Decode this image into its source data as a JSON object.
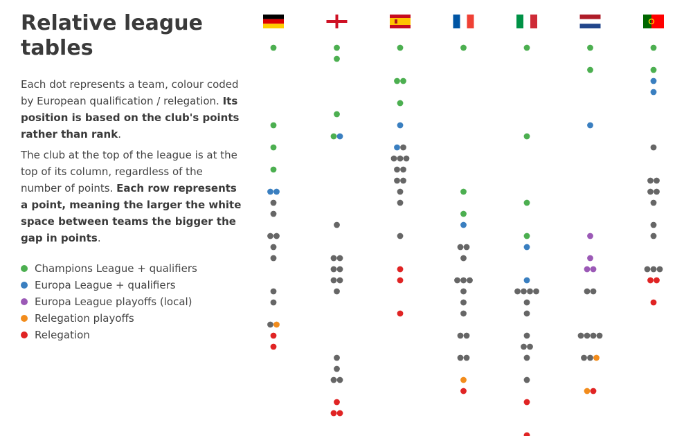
{
  "title_line1": "Relative league",
  "title_line2": "tables",
  "para1": {
    "a": "Each dot represents a team, colour coded by European qualification / relegation. ",
    "b": "Its position is based on the club's points rather than rank",
    "c": "."
  },
  "para2": {
    "a": "The club at the top of the league is at the top of its column, regardless of the number of points. ",
    "b": "Each row represents a point, meaning the larger the white space between teams the bigger the gap in points",
    "c": "."
  },
  "legend": [
    {
      "key": "cl",
      "label": "Champions League + qualifiers",
      "color": "#4caf50"
    },
    {
      "key": "el",
      "label": "Europa League + qualifiers",
      "color": "#3a7fc0"
    },
    {
      "key": "elp",
      "label": "Europa League playoffs (local)",
      "color": "#9b59b6"
    },
    {
      "key": "rp",
      "label": "Relegation playoffs",
      "color": "#f28c1c"
    },
    {
      "key": "rel",
      "label": "Relegation",
      "color": "#e02424"
    }
  ],
  "colors": {
    "none": "#666666"
  },
  "chart_data": {
    "type": "scatter",
    "leagues": [
      {
        "flag": "germany-flag",
        "rows": [
          [
            0,
            [
              "cl"
            ]
          ],
          [
            7,
            [
              "cl"
            ]
          ],
          [
            9,
            [
              "cl"
            ]
          ],
          [
            11,
            [
              "cl"
            ]
          ],
          [
            13,
            [
              "el",
              "el"
            ]
          ],
          [
            14,
            [
              "none"
            ]
          ],
          [
            15,
            [
              "none"
            ]
          ],
          [
            17,
            [
              "none",
              "none"
            ]
          ],
          [
            18,
            [
              "none"
            ]
          ],
          [
            19,
            [
              "none"
            ]
          ],
          [
            22,
            [
              "none"
            ]
          ],
          [
            23,
            [
              "none"
            ]
          ],
          [
            25,
            [
              "none",
              "rp"
            ]
          ],
          [
            26,
            [
              "rel"
            ]
          ],
          [
            27,
            [
              "rel"
            ]
          ]
        ]
      },
      {
        "flag": "england-flag",
        "rows": [
          [
            0,
            [
              "cl"
            ]
          ],
          [
            1,
            [
              "cl"
            ]
          ],
          [
            6,
            [
              "cl"
            ]
          ],
          [
            8,
            [
              "cl",
              "el"
            ]
          ],
          [
            16,
            [
              "none"
            ]
          ],
          [
            19,
            [
              "none",
              "none"
            ]
          ],
          [
            20,
            [
              "none",
              "none"
            ]
          ],
          [
            21,
            [
              "none",
              "none"
            ]
          ],
          [
            22,
            [
              "none"
            ]
          ],
          [
            28,
            [
              "none"
            ]
          ],
          [
            29,
            [
              "none"
            ]
          ],
          [
            30,
            [
              "none",
              "none"
            ]
          ],
          [
            32,
            [
              "rel"
            ]
          ],
          [
            33,
            [
              "rel",
              "rel"
            ]
          ]
        ]
      },
      {
        "flag": "spain-flag",
        "rows": [
          [
            0,
            [
              "cl"
            ]
          ],
          [
            3,
            [
              "cl",
              "cl"
            ]
          ],
          [
            5,
            [
              "cl"
            ]
          ],
          [
            7,
            [
              "el"
            ]
          ],
          [
            9,
            [
              "el",
              "none"
            ]
          ],
          [
            10,
            [
              "none",
              "none",
              "none"
            ]
          ],
          [
            11,
            [
              "none",
              "none"
            ]
          ],
          [
            12,
            [
              "none",
              "none"
            ]
          ],
          [
            13,
            [
              "none"
            ]
          ],
          [
            14,
            [
              "none"
            ]
          ],
          [
            17,
            [
              "none"
            ]
          ],
          [
            20,
            [
              "rel"
            ]
          ],
          [
            21,
            [
              "rel"
            ]
          ],
          [
            24,
            [
              "rel"
            ]
          ]
        ]
      },
      {
        "flag": "france-flag",
        "rows": [
          [
            0,
            [
              "cl"
            ]
          ],
          [
            13,
            [
              "cl"
            ]
          ],
          [
            15,
            [
              "cl"
            ]
          ],
          [
            16,
            [
              "el"
            ]
          ],
          [
            18,
            [
              "none",
              "none"
            ]
          ],
          [
            19,
            [
              "none"
            ]
          ],
          [
            21,
            [
              "none",
              "none",
              "none"
            ]
          ],
          [
            22,
            [
              "none"
            ]
          ],
          [
            23,
            [
              "none"
            ]
          ],
          [
            24,
            [
              "none"
            ]
          ],
          [
            26,
            [
              "none",
              "none"
            ]
          ],
          [
            28,
            [
              "none",
              "none"
            ]
          ],
          [
            30,
            [
              "rp"
            ]
          ],
          [
            31,
            [
              "rel"
            ]
          ]
        ]
      },
      {
        "flag": "italy-flag",
        "rows": [
          [
            0,
            [
              "cl"
            ]
          ],
          [
            8,
            [
              "cl"
            ]
          ],
          [
            14,
            [
              "cl"
            ]
          ],
          [
            17,
            [
              "cl"
            ]
          ],
          [
            18,
            [
              "el"
            ]
          ],
          [
            21,
            [
              "el"
            ]
          ],
          [
            22,
            [
              "none",
              "none",
              "none",
              "none"
            ]
          ],
          [
            23,
            [
              "none"
            ]
          ],
          [
            24,
            [
              "none"
            ]
          ],
          [
            26,
            [
              "none"
            ]
          ],
          [
            27,
            [
              "none",
              "none"
            ]
          ],
          [
            28,
            [
              "none"
            ]
          ],
          [
            30,
            [
              "none"
            ]
          ],
          [
            32,
            [
              "rel"
            ]
          ],
          [
            35,
            [
              "rel"
            ]
          ]
        ]
      },
      {
        "flag": "netherlands-flag",
        "rows": [
          [
            0,
            [
              "cl"
            ]
          ],
          [
            2,
            [
              "cl"
            ]
          ],
          [
            7,
            [
              "el"
            ]
          ],
          [
            17,
            [
              "elp"
            ]
          ],
          [
            19,
            [
              "elp"
            ]
          ],
          [
            20,
            [
              "elp",
              "elp"
            ]
          ],
          [
            22,
            [
              "none",
              "none"
            ]
          ],
          [
            26,
            [
              "none",
              "none",
              "none",
              "none"
            ]
          ],
          [
            28,
            [
              "none",
              "none",
              "rp"
            ]
          ],
          [
            31,
            [
              "rp",
              "rel"
            ]
          ]
        ]
      },
      {
        "flag": "portugal-flag",
        "rows": [
          [
            0,
            [
              "cl"
            ]
          ],
          [
            2,
            [
              "cl"
            ]
          ],
          [
            3,
            [
              "el"
            ]
          ],
          [
            4,
            [
              "el"
            ]
          ],
          [
            9,
            [
              "none"
            ]
          ],
          [
            12,
            [
              "none",
              "none"
            ]
          ],
          [
            13,
            [
              "none",
              "none"
            ]
          ],
          [
            14,
            [
              "none"
            ]
          ],
          [
            16,
            [
              "none"
            ]
          ],
          [
            17,
            [
              "none"
            ]
          ],
          [
            20,
            [
              "none",
              "none",
              "none"
            ]
          ],
          [
            21,
            [
              "rel",
              "rel"
            ]
          ],
          [
            23,
            [
              "rel"
            ]
          ]
        ]
      }
    ]
  }
}
